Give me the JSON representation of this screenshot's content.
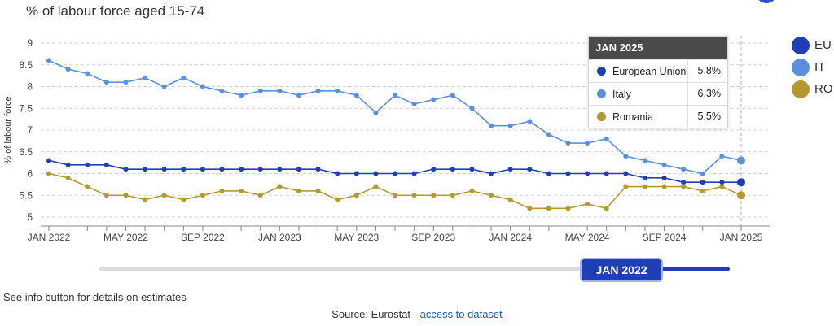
{
  "header": {
    "subtitle": "% of labour force aged 15-74"
  },
  "chart_data": {
    "type": "line",
    "title": "% of labour force aged 15-74",
    "ylabel": "% of labour force",
    "xlabel": "",
    "ylim": [
      5,
      9
    ],
    "yticks": [
      "5",
      "5.5",
      "6",
      "6.5",
      "7",
      "7.5",
      "8",
      "8.5",
      "9"
    ],
    "xtick_labels": [
      "JAN 2022",
      "MAY 2022",
      "SEP 2022",
      "JAN 2023",
      "MAY 2023",
      "SEP 2023",
      "JAN 2024",
      "MAY 2024",
      "SEP 2024",
      "JAN 2025"
    ],
    "x": [
      "JAN 2022",
      "FEB 2022",
      "MAR 2022",
      "APR 2022",
      "MAY 2022",
      "JUN 2022",
      "JUL 2022",
      "AUG 2022",
      "SEP 2022",
      "OCT 2022",
      "NOV 2022",
      "DEC 2022",
      "JAN 2023",
      "FEB 2023",
      "MAR 2023",
      "APR 2023",
      "MAY 2023",
      "JUN 2023",
      "JUL 2023",
      "AUG 2023",
      "SEP 2023",
      "OCT 2023",
      "NOV 2023",
      "DEC 2023",
      "JAN 2024",
      "FEB 2024",
      "MAR 2024",
      "APR 2024",
      "MAY 2024",
      "JUN 2024",
      "JUL 2024",
      "AUG 2024",
      "SEP 2024",
      "OCT 2024",
      "NOV 2024",
      "DEC 2024",
      "JAN 2025"
    ],
    "series": [
      {
        "name": "EU",
        "full_name": "European Union",
        "color": "#1f3fb4",
        "values": [
          6.3,
          6.2,
          6.2,
          6.2,
          6.1,
          6.1,
          6.1,
          6.1,
          6.1,
          6.1,
          6.1,
          6.1,
          6.1,
          6.1,
          6.1,
          6.0,
          6.0,
          6.0,
          6.0,
          6.0,
          6.1,
          6.1,
          6.1,
          6.0,
          6.1,
          6.1,
          6.0,
          6.0,
          6.0,
          6.0,
          6.0,
          5.9,
          5.9,
          5.8,
          5.8,
          5.8,
          5.8
        ]
      },
      {
        "name": "IT",
        "full_name": "Italy",
        "color": "#5b91dc",
        "values": [
          8.6,
          8.4,
          8.3,
          8.1,
          8.1,
          8.2,
          8.0,
          8.2,
          8.0,
          7.9,
          7.8,
          7.9,
          7.9,
          7.8,
          7.9,
          7.9,
          7.8,
          7.4,
          7.8,
          7.6,
          7.7,
          7.8,
          7.5,
          7.1,
          7.1,
          7.2,
          6.9,
          6.7,
          6.7,
          6.8,
          6.4,
          6.3,
          6.2,
          6.1,
          6.0,
          6.4,
          6.3
        ]
      },
      {
        "name": "RO",
        "full_name": "Romania",
        "color": "#b49a2e",
        "values": [
          6.0,
          5.9,
          5.7,
          5.5,
          5.5,
          5.4,
          5.5,
          5.4,
          5.5,
          5.6,
          5.6,
          5.5,
          5.7,
          5.6,
          5.6,
          5.4,
          5.5,
          5.7,
          5.5,
          5.5,
          5.5,
          5.5,
          5.6,
          5.5,
          5.4,
          5.2,
          5.2,
          5.2,
          5.3,
          5.2,
          5.7,
          5.7,
          5.7,
          5.7,
          5.6,
          5.7,
          5.5
        ]
      }
    ],
    "highlight_index": 36,
    "grid": true,
    "legend_position": "right"
  },
  "tooltip": {
    "title": "JAN 2025",
    "rows": [
      {
        "name": "European Union",
        "value": "5.8%",
        "color": "#1f3fb4"
      },
      {
        "name": "Italy",
        "value": "6.3%",
        "color": "#5b91dc"
      },
      {
        "name": "Romania",
        "value": "5.5%",
        "color": "#b49a2e"
      }
    ]
  },
  "slider": {
    "label": "JAN 2022"
  },
  "footer": {
    "note": "See info button for details on estimates",
    "source_prefix": "Source: Eurostat - ",
    "source_link": "access to dataset"
  }
}
